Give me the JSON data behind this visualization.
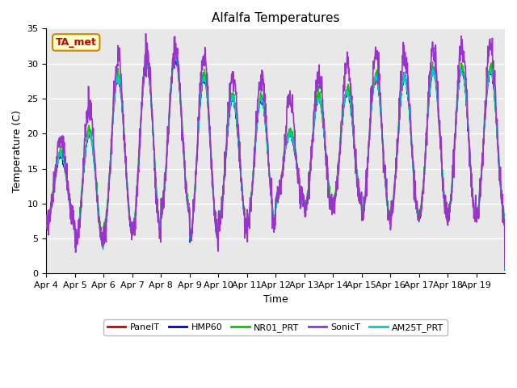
{
  "title": "Alfalfa Temperatures",
  "xlabel": "Time",
  "ylabel": "Temperature (C)",
  "ylim": [
    0,
    35
  ],
  "yticks": [
    0,
    5,
    10,
    15,
    20,
    25,
    30,
    35
  ],
  "fig_bg_color": "#ffffff",
  "plot_bg_color": "#e8e8e8",
  "annotation_text": "TA_met",
  "annotation_bg": "#ffffcc",
  "annotation_border": "#cc8800",
  "annotation_text_color": "#cc0000",
  "series": {
    "PanelT": {
      "color": "#cc0000",
      "lw": 1.0
    },
    "HMP60": {
      "color": "#0000dd",
      "lw": 1.0
    },
    "NR01_PRT": {
      "color": "#00cc00",
      "lw": 1.0
    },
    "SonicT": {
      "color": "#9933cc",
      "lw": 1.2
    },
    "AM25T_PRT": {
      "color": "#00cccc",
      "lw": 1.0
    }
  },
  "xtick_labels": [
    "Apr 4",
    "Apr 5",
    "Apr 6",
    "Apr 7",
    "Apr 8",
    "Apr 9",
    "Apr 10",
    "Apr 11",
    "Apr 12",
    "Apr 13",
    "Apr 14",
    "Apr 15",
    "Apr 16",
    "Apr 17",
    "Apr 18",
    "Apr 19"
  ],
  "n_days": 16,
  "pts_per_day": 96,
  "grid_color": "#ffffff",
  "legend_fontsize": 8,
  "tick_fontsize": 8,
  "title_fontsize": 11,
  "axis_label_fontsize": 9
}
